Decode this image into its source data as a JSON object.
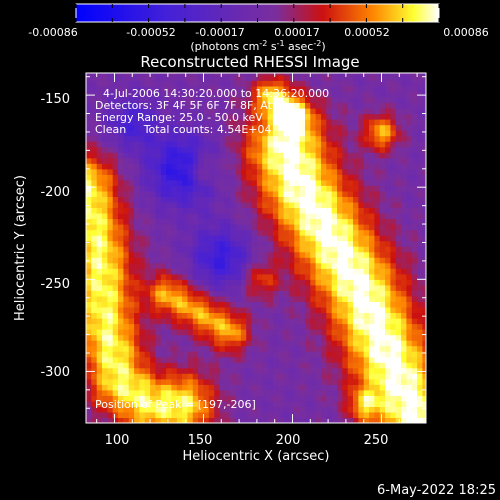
{
  "chart_data": {
    "type": "heatmap",
    "title": "Reconstructed RHESSI Image",
    "xlabel": "Heliocentric X (arcsec)",
    "ylabel": "Heliocentric Y (arcsec)",
    "xlim": [
      84,
      275
    ],
    "ylim": [
      -328,
      -138
    ],
    "x_ticks": [
      100,
      150,
      200,
      250
    ],
    "y_ticks": [
      -150,
      -200,
      -250,
      -300
    ],
    "colorbar": {
      "ticks": [
        "-0.00086",
        "-0.00052",
        "-0.00017",
        "0.00017",
        "0.00052",
        "0.00086"
      ],
      "range": [
        -0.00086,
        0.00086
      ],
      "unit_label": "(photons cm-2 s-1 asec-2)"
    },
    "annotations": [
      "4-Jul-2006 14:30:20.000 to 14:36:20.000",
      "Detectors: 3F 4F 5F 6F 7F 8F, Att 0",
      "Energy Range: 25.0 - 50.0 keV",
      "Clean     Total counts: 4.54E+04"
    ],
    "peak_label": "Position of Peak = [197,-206]",
    "peak": [
      197,
      -206
    ],
    "timestamp": "6-May-2022 18:25",
    "ridges": [
      {
        "points": [
          [
            197,
            -180
          ],
          [
            205,
            -200
          ],
          [
            222,
            -228
          ],
          [
            238,
            -255
          ],
          [
            250,
            -282
          ],
          [
            262,
            -310
          ],
          [
            270,
            -325
          ]
        ],
        "width": 17,
        "amp": 0.00086
      },
      {
        "points": [
          [
            84,
            -200
          ],
          [
            92,
            -240
          ],
          [
            95,
            -275
          ],
          [
            103,
            -305
          ],
          [
            120,
            -318
          ],
          [
            138,
            -318
          ]
        ],
        "width": 13,
        "amp": 0.00075
      },
      {
        "points": [
          [
            130,
            -258
          ],
          [
            148,
            -268
          ],
          [
            165,
            -278
          ]
        ],
        "width": 8,
        "amp": 0.0006
      },
      {
        "points": [
          [
            188,
            -150
          ],
          [
            200,
            -160
          ]
        ],
        "width": 7,
        "amp": 0.0006
      }
    ],
    "blobs": [
      {
        "center": [
          250,
          -170
        ],
        "width": 7,
        "amp": 0.0006
      },
      {
        "center": [
          150,
          -190
        ],
        "width": 6,
        "amp": 0.00035
      },
      {
        "center": [
          182,
          -250
        ],
        "width": 7,
        "amp": 0.0004
      },
      {
        "center": [
          240,
          -318
        ],
        "width": 6,
        "amp": 0.0004
      }
    ],
    "hollows": [
      {
        "center": [
          138,
          -190
        ],
        "width": 14,
        "amp": -0.0006
      },
      {
        "center": [
          160,
          -238
        ],
        "width": 12,
        "amp": -0.0005
      },
      {
        "center": [
          110,
          -165
        ],
        "width": 10,
        "amp": -0.0004
      }
    ]
  }
}
